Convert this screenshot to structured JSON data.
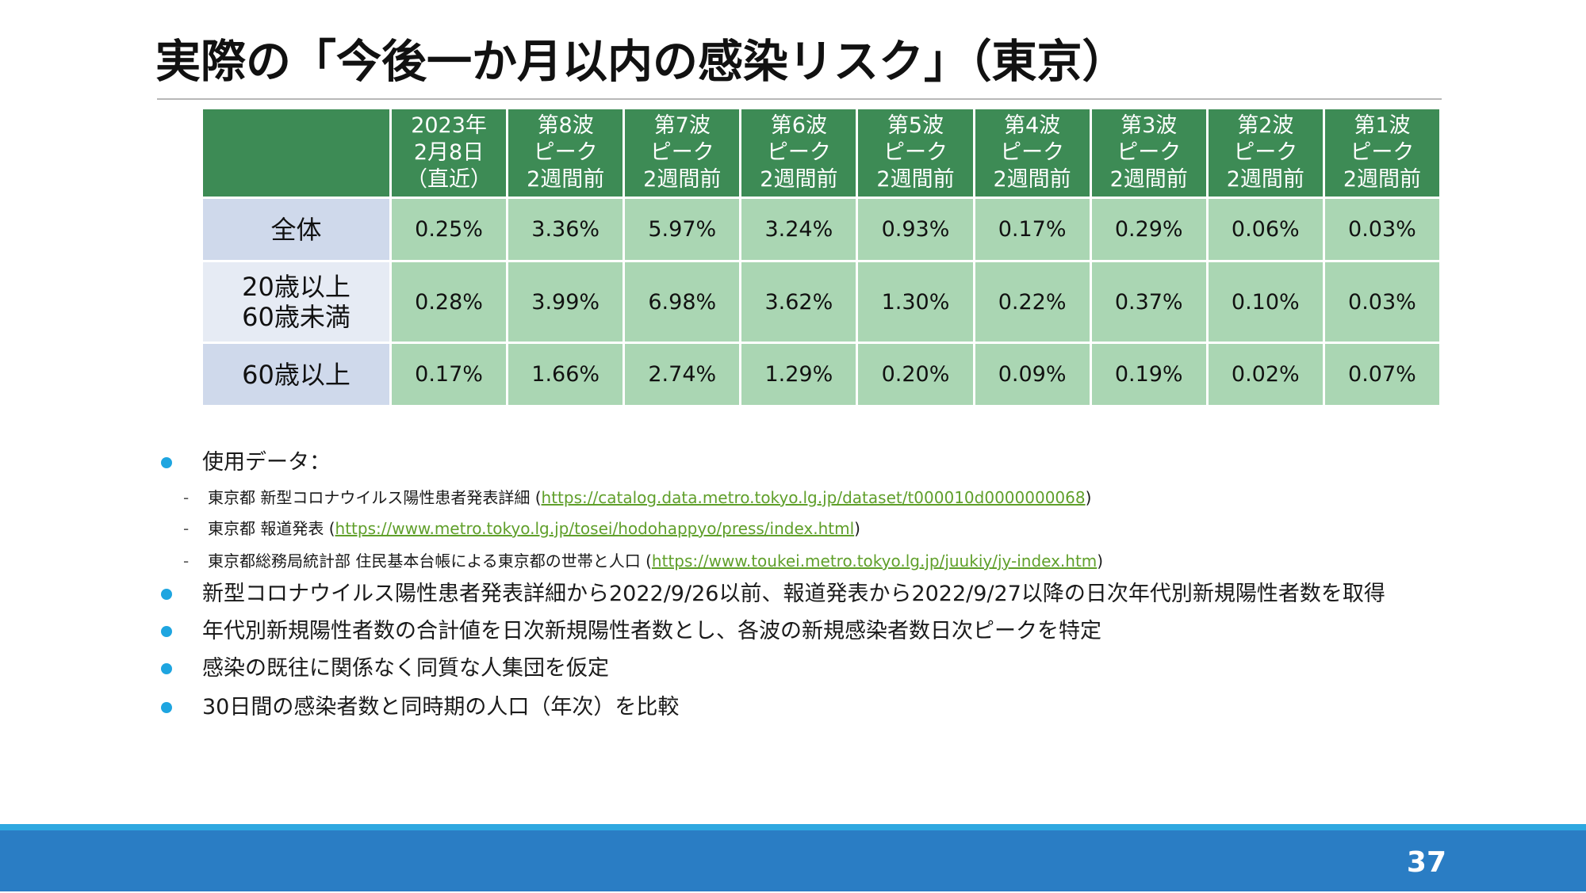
{
  "slide": {
    "title": "実際の「今後一か月以内の感染リスク」（東京）",
    "page_number": "37"
  },
  "colors": {
    "header_bg": "#3d8b55",
    "cell_bg": "#aad6b3",
    "label_bg": "#cfd9eb",
    "label_alt_bg": "#e6ebf4",
    "accent": "#1ea5e0",
    "footer": "#2a7dc4",
    "footer_strip": "#2fa8e0",
    "link": "#5f9f2a"
  },
  "table": {
    "columns": [
      "2023年\n2月8日\n（直近）",
      "第8波\nピーク\n2週間前",
      "第7波\nピーク\n2週間前",
      "第6波\nピーク\n2週間前",
      "第5波\nピーク\n2週間前",
      "第4波\nピーク\n2週間前",
      "第3波\nピーク\n2週間前",
      "第2波\nピーク\n2週間前",
      "第1波\nピーク\n2週間前"
    ],
    "rows": [
      {
        "label": "全体",
        "values": [
          "0.25%",
          "3.36%",
          "5.97%",
          "3.24%",
          "0.93%",
          "0.17%",
          "0.29%",
          "0.06%",
          "0.03%"
        ]
      },
      {
        "label": "20歳以上\n60歳未満",
        "values": [
          "0.28%",
          "3.99%",
          "6.98%",
          "3.62%",
          "1.30%",
          "0.22%",
          "0.37%",
          "0.10%",
          "0.03%"
        ]
      },
      {
        "label": "60歳以上",
        "values": [
          "0.17%",
          "1.66%",
          "2.74%",
          "1.29%",
          "0.20%",
          "0.09%",
          "0.19%",
          "0.02%",
          "0.07%"
        ]
      }
    ]
  },
  "notes": {
    "data_heading": "使用データ：",
    "sources": [
      {
        "prefix": "東京都 新型コロナウイルス陽性患者発表詳細 (",
        "url": "https://catalog.data.metro.tokyo.lg.jp/dataset/t000010d0000000068",
        "suffix": ")"
      },
      {
        "prefix": "東京都 報道発表 (",
        "url": "https://www.metro.tokyo.lg.jp/tosei/hodohappyo/press/index.html",
        "suffix": ")"
      },
      {
        "prefix": "東京都総務局統計部 住民基本台帳による東京都の世帯と人口 (",
        "url": "https://www.toukei.metro.tokyo.lg.jp/juukiy/jy-index.htm",
        "suffix": ")"
      }
    ],
    "bullets": [
      "新型コロナウイルス陽性患者発表詳細から2022/9/26以前、報道発表から2022/9/27以降の日次年代別新規陽性者数を取得",
      "年代別新規陽性者数の合計値を日次新規陽性者数とし、各波の新規感染者数日次ピークを特定",
      "感染の既往に関係なく同質な人集団を仮定",
      "30日間の感染者数と同時期の人口（年次）を比較"
    ]
  }
}
